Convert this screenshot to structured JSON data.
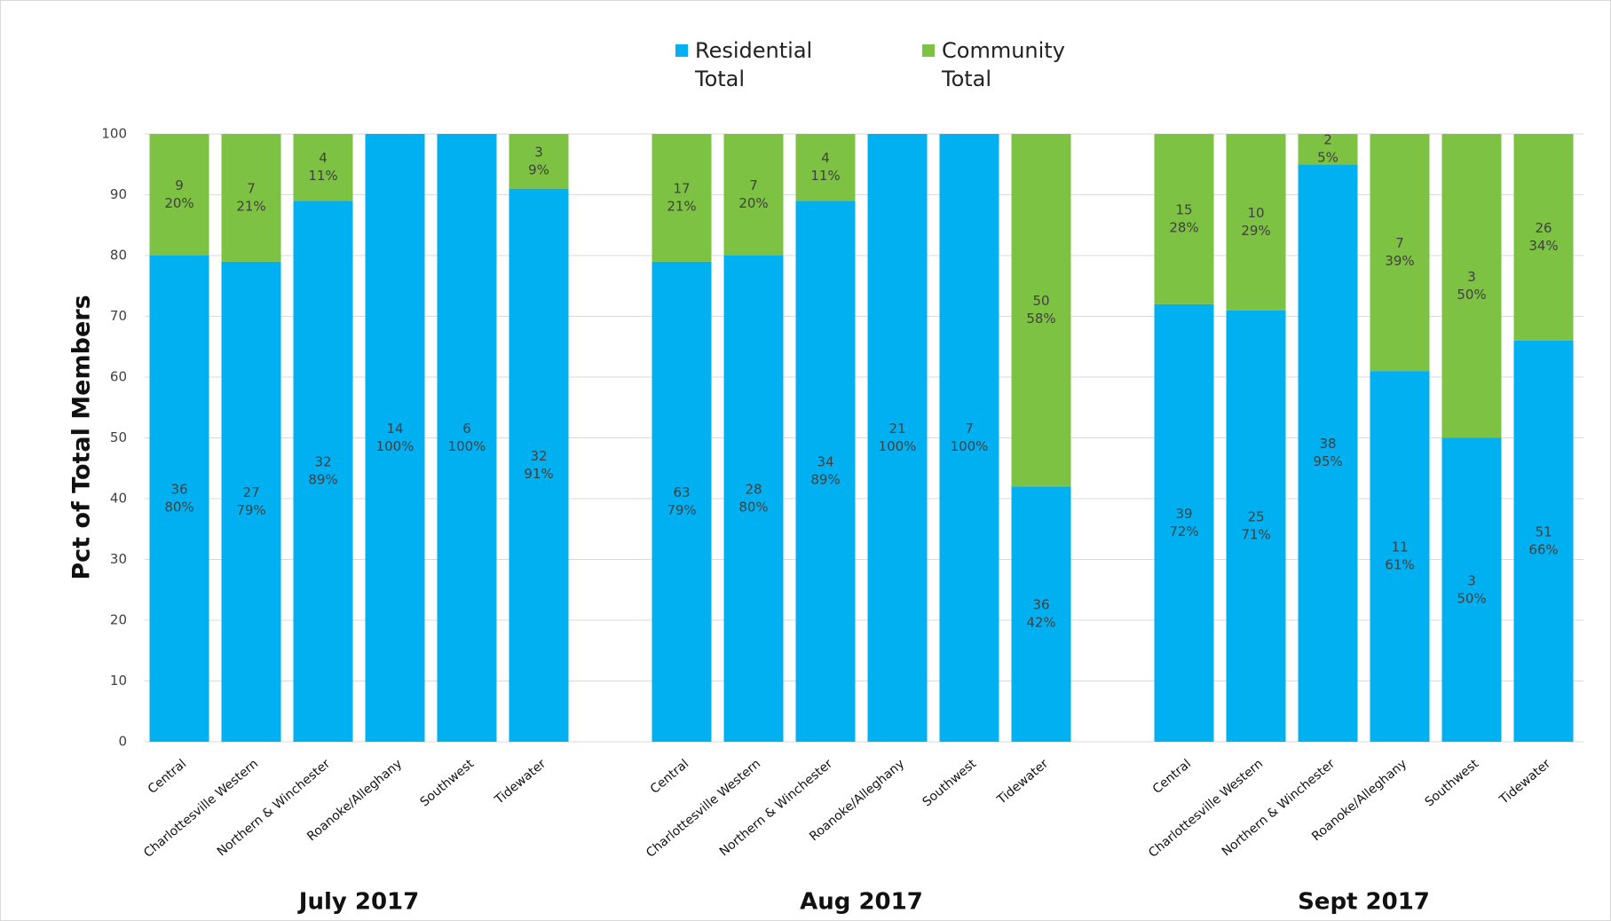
{
  "chart_data": {
    "type": "stacked_bar",
    "ylabel": "Pct of Total Members",
    "groups": [
      {
        "name": "July 2017",
        "categories": [
          "Central",
          "Charlottesville Western",
          "Northern & Winchester",
          "Roanoke/Alleghany",
          "Southwest",
          "Tidewater"
        ]
      },
      {
        "name": "Aug 2017",
        "categories": [
          "Central",
          "Charlottesville Western",
          "Northern & Winchester",
          "Roanoke/Alleghany",
          "Southwest",
          "Tidewater"
        ]
      },
      {
        "name": "Sept 2017",
        "categories": [
          "Central",
          "Charlottesville Western",
          "Northern & Winchester",
          "Roanoke/Alleghany",
          "Southwest",
          "Tidewater"
        ]
      }
    ],
    "series": [
      {
        "name": "Residential Total",
        "color": "#00b0f0",
        "values": [
          80,
          79,
          89,
          100,
          100,
          91,
          79,
          80,
          89,
          100,
          100,
          42,
          72,
          71,
          95,
          61,
          50,
          66
        ],
        "value_labels": [
          "80%",
          "79%",
          "89%",
          "100%",
          "100%",
          "91%",
          "79%",
          "80%",
          "89%",
          "100%",
          "100%",
          "42%",
          "72%",
          "71%",
          "95%",
          "61%",
          "50%",
          "66%"
        ],
        "counts": [
          36,
          27,
          32,
          14,
          6,
          32,
          63,
          28,
          34,
          21,
          7,
          36,
          39,
          25,
          38,
          11,
          3,
          51
        ]
      },
      {
        "name": "Community Total",
        "color": "#7dc242",
        "values": [
          20,
          21,
          11,
          0,
          0,
          9,
          21,
          20,
          11,
          0,
          0,
          58,
          28,
          29,
          5,
          39,
          50,
          34
        ],
        "value_labels": [
          "20%",
          "21%",
          "11%",
          null,
          null,
          "9%",
          "21%",
          "20%",
          "11%",
          null,
          null,
          "58%",
          "28%",
          "29%",
          "5%",
          "39%",
          "50%",
          "34%"
        ],
        "counts": [
          9,
          7,
          4,
          null,
          null,
          3,
          17,
          7,
          4,
          null,
          null,
          50,
          15,
          10,
          2,
          7,
          3,
          26
        ]
      }
    ],
    "ylim": [
      0,
      100
    ],
    "yticks": [
      0,
      10,
      20,
      30,
      40,
      50,
      60,
      70,
      80,
      90,
      100
    ],
    "grid": true
  }
}
